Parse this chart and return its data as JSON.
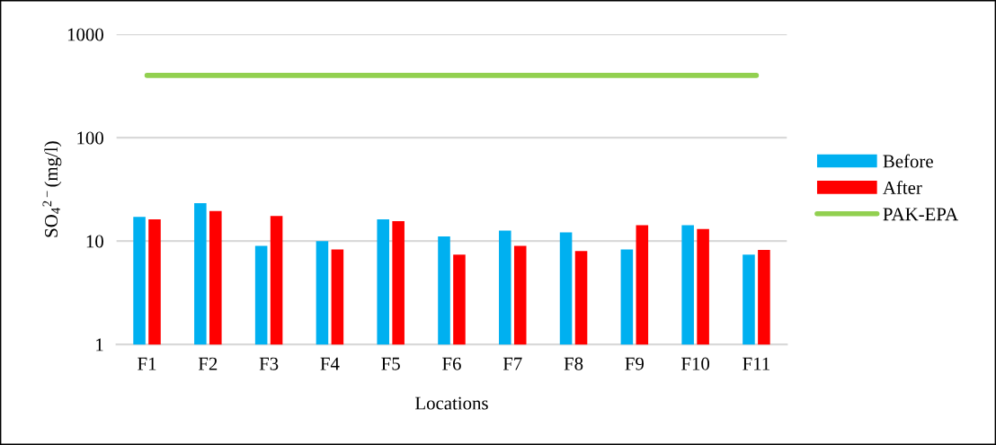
{
  "chart_data": {
    "type": "bar",
    "xlabel": "Locations",
    "ylabel": "SO$_{4}$$^{2−}$(mg/l)",
    "categories": [
      "F1",
      "F2",
      "F3",
      "F4",
      "F5",
      "F6",
      "F7",
      "F8",
      "F9",
      "F10",
      "F11"
    ],
    "series": [
      {
        "name": "Before",
        "color": "#00b0f0",
        "values": [
          17.1,
          23.2,
          9.0,
          10.0,
          16.2,
          11.1,
          12.6,
          12.1,
          8.3,
          14.2,
          7.4
        ]
      },
      {
        "name": "After",
        "color": "#ff0000",
        "values": [
          16.2,
          19.5,
          17.5,
          8.3,
          15.6,
          7.4,
          9.0,
          8.0,
          14.2,
          13.1,
          8.2
        ]
      },
      {
        "name": "PAK-EPA",
        "type": "line",
        "color": "#92d050",
        "values": [
          400,
          400,
          400,
          400,
          400,
          400,
          400,
          400,
          400,
          400,
          400
        ]
      }
    ],
    "log": "y",
    "ylim": [
      1,
      1000
    ],
    "yticks": [
      1,
      10,
      100,
      1000
    ],
    "grid": "y",
    "legend": "right",
    "marker": "none",
    "line_style": "solid"
  }
}
